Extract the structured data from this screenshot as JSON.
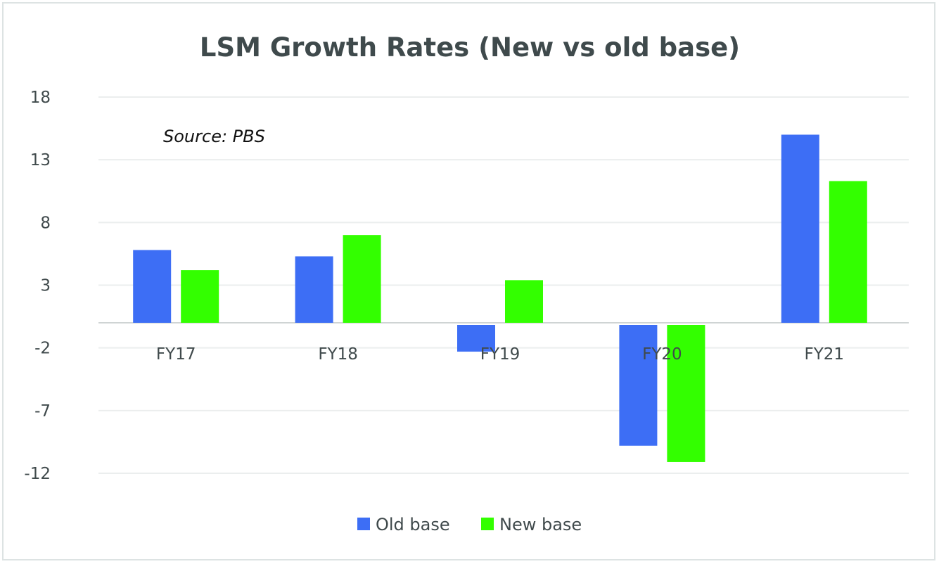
{
  "chart_data": {
    "type": "bar",
    "title": "LSM Growth Rates (New vs old base)",
    "annotation": "Source: PBS",
    "xlabel": "",
    "ylabel": "",
    "categories": [
      "FY17",
      "FY18",
      "FY19",
      "FY20",
      "FY21"
    ],
    "series": [
      {
        "name": "Old base",
        "color": "#3d6ef5",
        "values": [
          5.8,
          5.3,
          -2.3,
          -9.8,
          15.0
        ]
      },
      {
        "name": "New base",
        "color": "#33ff00",
        "values": [
          4.2,
          7.0,
          3.4,
          -11.1,
          11.3
        ]
      }
    ],
    "yticks": [
      18,
      13,
      8,
      3,
      -2,
      -7,
      -12
    ],
    "ylim": [
      -12,
      18
    ],
    "grid": true,
    "legend": "bottom"
  }
}
